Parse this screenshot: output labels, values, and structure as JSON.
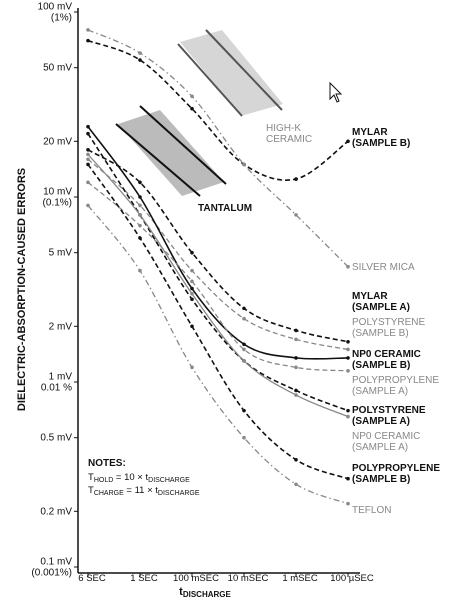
{
  "chart_data": {
    "type": "line",
    "y_label": "DIELECTRIC-ABSORPTION-CAUSED ERRORS",
    "x_label": [
      "t",
      "DISCHARGE"
    ],
    "categories": [
      "6 SEC",
      "1 SEC",
      "100 mSEC",
      "10 mSEC",
      "1 mSEC",
      "100 µSEC"
    ],
    "log_y": true,
    "ylim": [
      0.1,
      100
    ],
    "yticks": [
      {
        "value": 100,
        "label": "100 mV\n(1%)"
      },
      {
        "value": 50,
        "label": "50 mV"
      },
      {
        "value": 20,
        "label": "20 mV"
      },
      {
        "value": 10,
        "label": "10 mV\n(0.1%)"
      },
      {
        "value": 5,
        "label": "5 mV"
      },
      {
        "value": 2,
        "label": "2 mV"
      },
      {
        "value": 1,
        "label": "1 mV\n0.01 %"
      },
      {
        "value": 0.5,
        "label": "0.5 mV"
      },
      {
        "value": 0.2,
        "label": "0.2 mV"
      },
      {
        "value": 0.1,
        "label": "0.1 mV\n(0.001%)"
      }
    ],
    "series": [
      {
        "name": "MYLAR\n(SAMPLE B)",
        "color": "#111111",
        "style": "dashed",
        "values": [
          70,
          55,
          30,
          15,
          12.5,
          20
        ]
      },
      {
        "name": "SILVER MICA",
        "color": "#888888",
        "style": "dashdot",
        "values": [
          80,
          60,
          35,
          15,
          8,
          4.2
        ]
      },
      {
        "name": "MYLAR\n(SAMPLE A)",
        "color": "#111111",
        "style": "dashed",
        "values": [
          18,
          12,
          5,
          2.5,
          1.9,
          1.65
        ]
      },
      {
        "name": "POLYSTYRENE\n(SAMPLE B)",
        "color": "#888888",
        "style": "dashed",
        "values": [
          16,
          9,
          4,
          2.2,
          1.7,
          1.5
        ]
      },
      {
        "name": "NP0 CERAMIC\n(SAMPLE B)",
        "color": "#111111",
        "style": "solid",
        "values": [
          24,
          10,
          3.2,
          1.6,
          1.35,
          1.35
        ]
      },
      {
        "name": "POLYPROPYLENE\n(SAMPLE A)",
        "color": "#888888",
        "style": "dashed",
        "values": [
          12,
          7,
          3.5,
          1.5,
          1.2,
          1.15
        ]
      },
      {
        "name": "POLYSTYRENE\n(SAMPLE A)",
        "color": "#111111",
        "style": "dashed",
        "values": [
          22,
          8,
          2.8,
          1.3,
          0.9,
          0.7
        ]
      },
      {
        "name": "NP0 CERAMIC\n(SAMPLE A)",
        "color": "#888888",
        "style": "solid",
        "values": [
          17,
          8,
          3,
          1.3,
          0.85,
          0.65
        ]
      },
      {
        "name": "POLYPROPYLENE\n(SAMPLE B)",
        "color": "#111111",
        "style": "dashed",
        "values": [
          15,
          6,
          2,
          0.7,
          0.38,
          0.3
        ]
      },
      {
        "name": "TEFLON",
        "color": "#888888",
        "style": "dashdot",
        "values": [
          9,
          4,
          1.2,
          0.5,
          0.28,
          0.22
        ]
      }
    ],
    "annotations": [
      "HIGH-K\nCERAMIC",
      "TANTALUM"
    ],
    "notes": {
      "title": "NOTES:",
      "lines": [
        [
          "T",
          "HOLD",
          " = 10 × t",
          "DISCHARGE"
        ],
        [
          "T",
          "CHARGE",
          " = 11 × t",
          "DISCHARGE"
        ]
      ]
    }
  }
}
